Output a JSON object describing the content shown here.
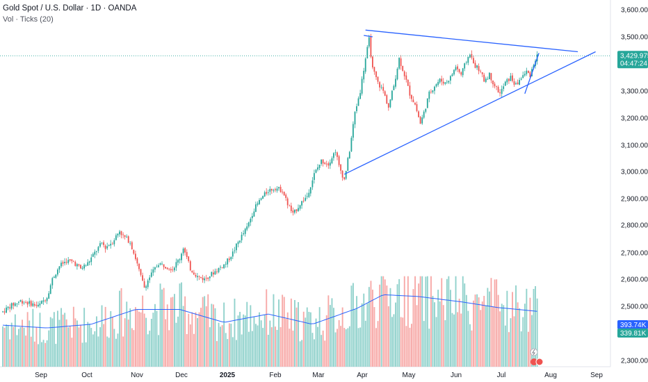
{
  "legend": {
    "title": "Gold Spot / U.S. Dollar · 1D · OANDA",
    "volume_label": "Vol · Ticks (20)"
  },
  "price_badge": {
    "price": "3,429.975",
    "countdown": "04:47:24"
  },
  "volume_badges": {
    "ma": "393.74K",
    "vol": "339.81K"
  },
  "colors": {
    "up": "#26a69a",
    "down": "#ef5350",
    "up_vol": "#91d2cc",
    "down_vol": "#f7a9a7",
    "trend": "#2962ff",
    "ma": "#2962ff"
  },
  "chart_data": {
    "type": "candlestick",
    "title": "Gold Spot / U.S. Dollar · 1D · OANDA",
    "y_ticks": [
      "3,600.000",
      "3,500.000",
      "3,400.000",
      "3,300.000",
      "3,200.000",
      "3,100.000",
      "3,000.000",
      "2,900.000",
      "2,800.000",
      "2,700.000",
      "2,600.000",
      "2,500.000",
      "2,300.000"
    ],
    "y_tick_values": [
      3600,
      3500,
      3400,
      3300,
      3200,
      3100,
      3000,
      2900,
      2800,
      2700,
      2600,
      2500,
      2300
    ],
    "x_ticks": [
      "Sep",
      "Oct",
      "Nov",
      "Dec",
      "2025",
      "Feb",
      "Mar",
      "Apr",
      "May",
      "Jun",
      "Jul",
      "Aug",
      "Sep"
    ],
    "ylim": [
      2280,
      3620
    ],
    "last_price": 3429.975,
    "price_path": [
      [
        0,
        2480
      ],
      [
        4,
        2500
      ],
      [
        10,
        2520
      ],
      [
        16,
        2510
      ],
      [
        20,
        2500
      ],
      [
        25,
        2535
      ],
      [
        28,
        2600
      ],
      [
        32,
        2650
      ],
      [
        36,
        2670
      ],
      [
        40,
        2665
      ],
      [
        44,
        2640
      ],
      [
        48,
        2660
      ],
      [
        52,
        2700
      ],
      [
        56,
        2735
      ],
      [
        58,
        2720
      ],
      [
        62,
        2740
      ],
      [
        66,
        2780
      ],
      [
        68,
        2760
      ],
      [
        72,
        2740
      ],
      [
        75,
        2680
      ],
      [
        78,
        2610
      ],
      [
        80,
        2570
      ],
      [
        84,
        2620
      ],
      [
        88,
        2660
      ],
      [
        92,
        2650
      ],
      [
        96,
        2640
      ],
      [
        100,
        2680
      ],
      [
        102,
        2720
      ],
      [
        106,
        2640
      ],
      [
        110,
        2610
      ],
      [
        114,
        2600
      ],
      [
        118,
        2620
      ],
      [
        122,
        2640
      ],
      [
        126,
        2660
      ],
      [
        130,
        2700
      ],
      [
        134,
        2750
      ],
      [
        138,
        2790
      ],
      [
        142,
        2860
      ],
      [
        146,
        2900
      ],
      [
        150,
        2930
      ],
      [
        154,
        2940
      ],
      [
        158,
        2930
      ],
      [
        161,
        2880
      ],
      [
        164,
        2840
      ],
      [
        168,
        2880
      ],
      [
        172,
        2910
      ],
      [
        176,
        2990
      ],
      [
        180,
        3040
      ],
      [
        184,
        3030
      ],
      [
        188,
        3080
      ],
      [
        190,
        3020
      ],
      [
        193,
        2970
      ],
      [
        196,
        3080
      ],
      [
        199,
        3220
      ],
      [
        202,
        3300
      ],
      [
        205,
        3420
      ],
      [
        207,
        3490
      ],
      [
        209,
        3380
      ],
      [
        212,
        3330
      ],
      [
        215,
        3300
      ],
      [
        218,
        3240
      ],
      [
        221,
        3320
      ],
      [
        224,
        3420
      ],
      [
        227,
        3360
      ],
      [
        230,
        3290
      ],
      [
        233,
        3250
      ],
      [
        236,
        3180
      ],
      [
        238,
        3220
      ],
      [
        241,
        3290
      ],
      [
        244,
        3320
      ],
      [
        247,
        3340
      ],
      [
        250,
        3330
      ],
      [
        253,
        3350
      ],
      [
        256,
        3390
      ],
      [
        259,
        3360
      ],
      [
        262,
        3410
      ],
      [
        264,
        3440
      ],
      [
        266,
        3400
      ],
      [
        269,
        3380
      ],
      [
        272,
        3340
      ],
      [
        275,
        3360
      ],
      [
        278,
        3320
      ],
      [
        281,
        3290
      ],
      [
        284,
        3330
      ],
      [
        287,
        3350
      ],
      [
        290,
        3320
      ],
      [
        293,
        3350
      ],
      [
        296,
        3370
      ],
      [
        298,
        3360
      ],
      [
        300,
        3400
      ],
      [
        302,
        3430
      ]
    ],
    "volume": [
      {
        "start": "Sep",
        "ma_level": "low",
        "note": "volume bars with MA line"
      }
    ],
    "volume_ma_path": [
      [
        0,
        0.45
      ],
      [
        25,
        0.42
      ],
      [
        50,
        0.46
      ],
      [
        75,
        0.62
      ],
      [
        100,
        0.62
      ],
      [
        125,
        0.48
      ],
      [
        150,
        0.57
      ],
      [
        175,
        0.46
      ],
      [
        200,
        0.63
      ],
      [
        215,
        0.78
      ],
      [
        235,
        0.76
      ],
      [
        260,
        0.7
      ],
      [
        280,
        0.64
      ],
      [
        302,
        0.6
      ]
    ],
    "annotations": [
      {
        "type": "trendline",
        "name": "upper-trendline",
        "from": [
          205,
          3525
        ],
        "to": [
          325,
          3445
        ]
      },
      {
        "type": "trendline",
        "name": "lower-trendline",
        "from": [
          193,
          2990
        ],
        "to": [
          335,
          3445
        ]
      },
      {
        "type": "trendline",
        "name": "breakout-line",
        "from": [
          295,
          3290
        ],
        "to": [
          303,
          3440
        ]
      },
      {
        "type": "short-line",
        "name": "top-mark",
        "from": [
          204,
          3505
        ],
        "to": [
          209,
          3500
        ]
      }
    ]
  }
}
